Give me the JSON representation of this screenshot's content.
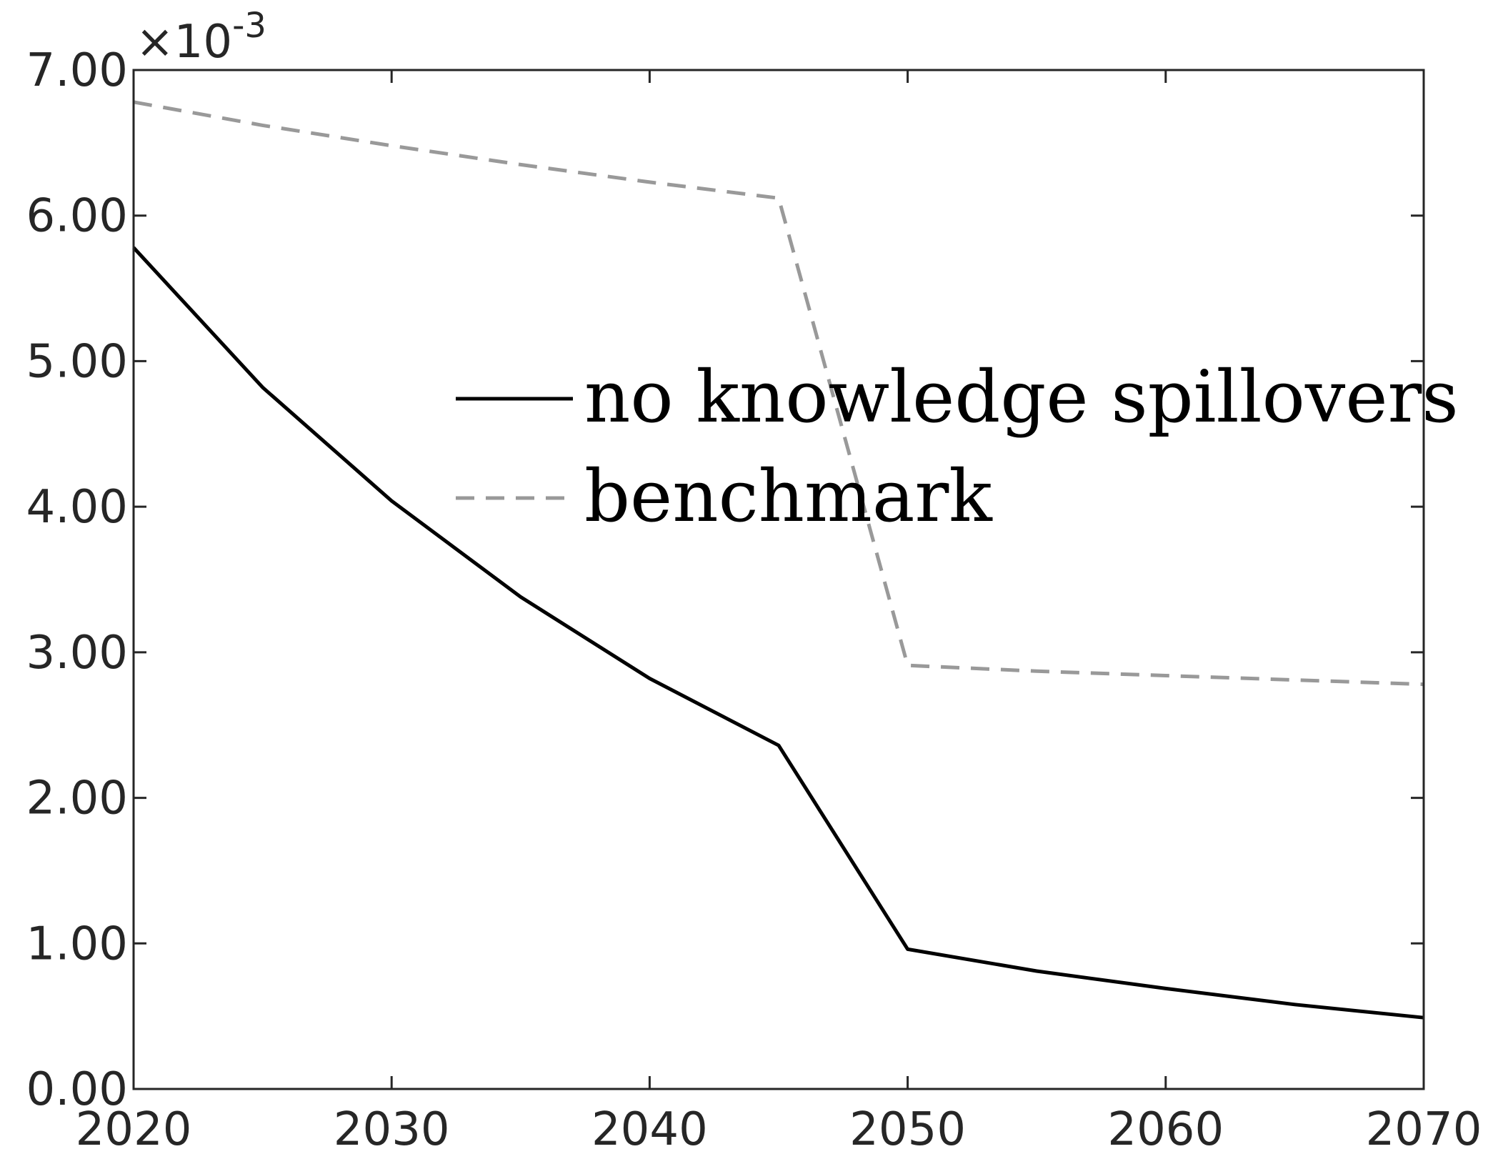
{
  "chart_data": {
    "type": "line",
    "title": "",
    "xlabel": "",
    "ylabel": "",
    "xlim": [
      2020,
      2070
    ],
    "ylim": [
      0,
      7
    ],
    "y_scale_multiplier": {
      "base": "×10",
      "exponent": "-3"
    },
    "x_ticks": [
      {
        "value": 2020,
        "label": "2020"
      },
      {
        "value": 2030,
        "label": "2030"
      },
      {
        "value": 2040,
        "label": "2040"
      },
      {
        "value": 2050,
        "label": "2050"
      },
      {
        "value": 2060,
        "label": "2060"
      },
      {
        "value": 2070,
        "label": "2070"
      }
    ],
    "y_ticks": [
      {
        "value": 0,
        "label": "0.00"
      },
      {
        "value": 1,
        "label": "1.00"
      },
      {
        "value": 2,
        "label": "2.00"
      },
      {
        "value": 3,
        "label": "3.00"
      },
      {
        "value": 4,
        "label": "4.00"
      },
      {
        "value": 5,
        "label": "5.00"
      },
      {
        "value": 6,
        "label": "6.00"
      },
      {
        "value": 7,
        "label": "7.00"
      }
    ],
    "grid": false,
    "legend_position": "center-right",
    "series": [
      {
        "name": "no knowledge spillovers",
        "color": "#000000",
        "style": "solid",
        "x": [
          2020,
          2025,
          2030,
          2035,
          2040,
          2045,
          2050,
          2055,
          2060,
          2065,
          2070
        ],
        "y": [
          5.78,
          4.82,
          4.04,
          3.38,
          2.82,
          2.36,
          0.96,
          0.81,
          0.69,
          0.58,
          0.49
        ]
      },
      {
        "name": "benchmark",
        "color": "#999999",
        "style": "dashed",
        "x": [
          2020,
          2025,
          2030,
          2035,
          2040,
          2045,
          2050,
          2055,
          2060,
          2065,
          2070
        ],
        "y": [
          6.78,
          6.62,
          6.48,
          6.35,
          6.23,
          6.12,
          2.91,
          2.87,
          2.84,
          2.81,
          2.78
        ]
      }
    ]
  }
}
